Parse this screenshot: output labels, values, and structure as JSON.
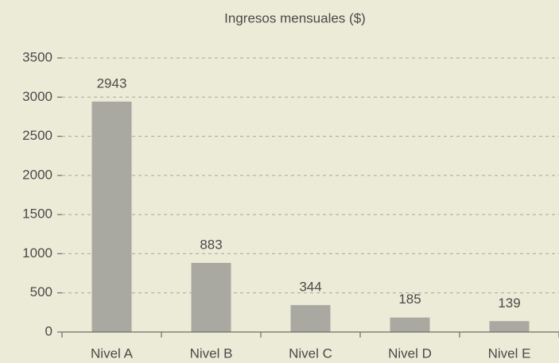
{
  "chart_data": {
    "type": "bar",
    "title": "Ingresos mensuales ($)",
    "categories": [
      "Nivel A",
      "Nivel B",
      "Nivel C",
      "Nivel D",
      "Nivel E"
    ],
    "values": [
      2943,
      883,
      344,
      185,
      139
    ],
    "color": "#a9a9a1",
    "ylim": [
      0,
      3500
    ],
    "yticks": [
      0,
      500,
      1000,
      1500,
      2000,
      2500,
      3000,
      3500
    ],
    "grid": true
  }
}
